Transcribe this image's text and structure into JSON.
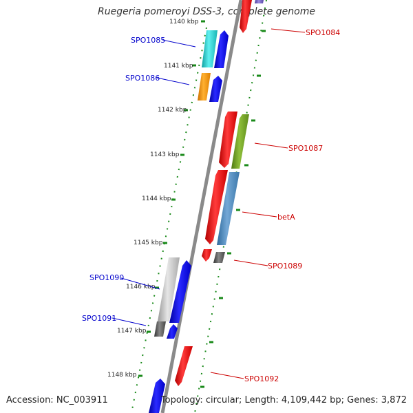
{
  "header": {
    "title": "Ruegeria pomeroyi DSS-3, complete genome"
  },
  "footer": {
    "accession": "Accession: NC_003911",
    "summary": "Topology: circular; Length: 4,109,442 bp; Genes: 3,872"
  },
  "scale_labels": [
    "1140 kbp",
    "1141 kbp",
    "1142 kbp",
    "1143 kbp",
    "1144 kbp",
    "1145 kbp",
    "1146 kbp",
    "1147 kbp",
    "1148 kbp"
  ],
  "genes_right": [
    "SPO1084",
    "SPO1087",
    "betA",
    "SPO1089",
    "SPO1092"
  ],
  "genes_left": [
    "SPO1085",
    "SPO1086",
    "SPO1090",
    "SPO1091"
  ],
  "colors": {
    "backbone": "#8a8a8a",
    "tick_green": "#1a8a1a",
    "red": "#ee1111",
    "blue": "#1111ee",
    "cyan": "#22cccc",
    "orange": "#ff9900",
    "olive": "#6b9b22",
    "steel_blue": "#4a86b8",
    "dark_gray": "#555555",
    "light_gray": "#bbbbbb",
    "purple": "#6a5ab8",
    "label_right": "#cc0000",
    "label_left": "#0000cc"
  }
}
